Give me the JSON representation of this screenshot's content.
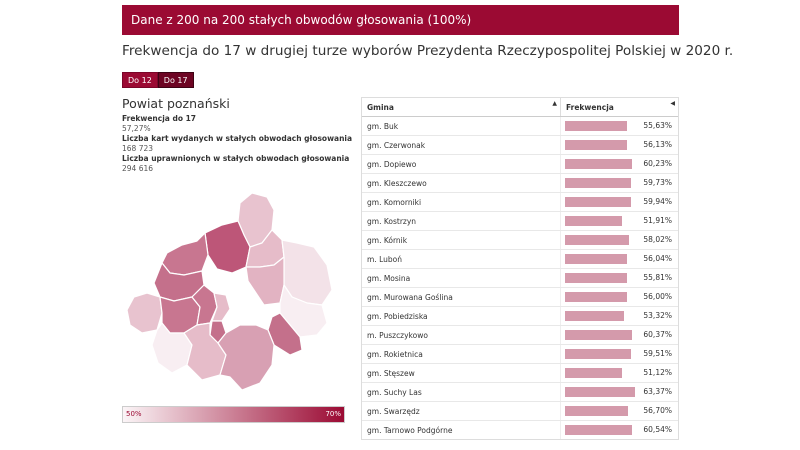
{
  "banner": {
    "text": "Dane z 200 na 200 stałych obwodów głosowania (100%)"
  },
  "page": {
    "title": "Frekwencja do 17 w drugiej turze wyborów Prezydenta Rzeczypospolitej Polskiej w 2020 r."
  },
  "tabs": [
    {
      "label": "Do 12",
      "active": false
    },
    {
      "label": "Do 17",
      "active": true
    }
  ],
  "district": {
    "name": "Powiat poznański",
    "stats": [
      {
        "label": "Frekwencja do 17",
        "value": "57,27%"
      },
      {
        "label": "Liczba kart wydanych w stałych obwodach głosowania",
        "value": "168 723"
      },
      {
        "label": "Liczba uprawnionych w stałych obwodach głosowania",
        "value": "294 616"
      }
    ]
  },
  "legend": {
    "min": "50%",
    "max": "70%",
    "min_color": "#fbf5f7",
    "max_color": "#9b0a33"
  },
  "table": {
    "headers": {
      "gmina": "Gmina",
      "frekwencja": "Frekwencja"
    },
    "icons": {
      "gmina_sort": "sort-up-icon",
      "frekwencja_sort": "sort-left-icon"
    },
    "bar_color": "#d49aab",
    "rows": [
      {
        "name": "gm. Buk",
        "value": "55,63%",
        "num": 55.63
      },
      {
        "name": "gm. Czerwonak",
        "value": "56,13%",
        "num": 56.13
      },
      {
        "name": "gm. Dopiewo",
        "value": "60,23%",
        "num": 60.23
      },
      {
        "name": "gm. Kleszczewo",
        "value": "59,73%",
        "num": 59.73
      },
      {
        "name": "gm. Komorniki",
        "value": "59,94%",
        "num": 59.94
      },
      {
        "name": "gm. Kostrzyn",
        "value": "51,91%",
        "num": 51.91
      },
      {
        "name": "gm. Kórnik",
        "value": "58,02%",
        "num": 58.02
      },
      {
        "name": "m. Luboń",
        "value": "56,04%",
        "num": 56.04
      },
      {
        "name": "gm. Mosina",
        "value": "55,81%",
        "num": 55.81
      },
      {
        "name": "gm. Murowana Goślina",
        "value": "56,00%",
        "num": 56.0
      },
      {
        "name": "gm. Pobiedziska",
        "value": "53,32%",
        "num": 53.32
      },
      {
        "name": "m. Puszczykowo",
        "value": "60,37%",
        "num": 60.37
      },
      {
        "name": "gm. Rokietnica",
        "value": "59,51%",
        "num": 59.51
      },
      {
        "name": "gm. Stęszew",
        "value": "51,12%",
        "num": 51.12
      },
      {
        "name": "gm. Suchy Las",
        "value": "63,37%",
        "num": 63.37
      },
      {
        "name": "gm. Swarzędz",
        "value": "56,70%",
        "num": 56.7
      },
      {
        "name": "gm. Tarnowo Podgórne",
        "value": "60,54%",
        "num": 60.54
      }
    ]
  }
}
